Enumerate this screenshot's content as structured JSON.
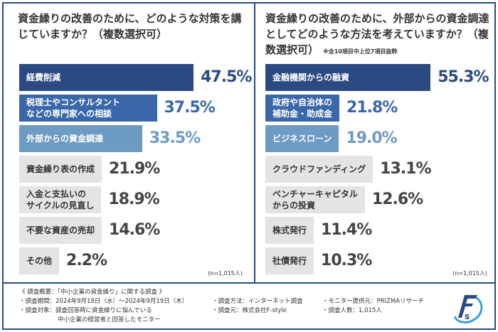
{
  "colors": {
    "top1": "#2c4a82",
    "top2": "#3a67a8",
    "top3": "#6e9bc4",
    "rest": "#e4e4e4",
    "frame": "#2c4a82"
  },
  "chart_data": [
    {
      "type": "bar",
      "orientation": "horizontal",
      "title": "資金繰りの改善のために、どのような対策を講じていますか？（複数選択可）",
      "categories": [
        "経費削減",
        "税理士やコンサルタントなどの専門家への相談",
        "外部からの資金調達",
        "資金繰り表の作成",
        "入金と支払いのサイクルの見直し",
        "不要な資産の売却",
        "その他"
      ],
      "labels": [
        [
          "経費削減"
        ],
        [
          "税理士やコンサルタント",
          "などの専門家への相談"
        ],
        [
          "外部からの資金調達"
        ],
        [
          "資金繰り表の作成"
        ],
        [
          "入金と支払いの",
          "サイクルの見直し"
        ],
        [
          "不要な資産の売却"
        ],
        [
          "その他"
        ]
      ],
      "values": [
        47.5,
        37.5,
        33.5,
        21.9,
        18.9,
        14.6,
        2.2
      ],
      "value_labels": [
        "47.5%",
        "37.5%",
        "33.5%",
        "21.9%",
        "18.9%",
        "14.6%",
        "2.2%"
      ],
      "unit": "%",
      "n_note": "(n=1,015人)"
    },
    {
      "type": "bar",
      "orientation": "horizontal",
      "title": "資金繰りの改善のために、外部からの資金調達としてどのような方法を考えていますか？（複数選択可）",
      "note": "※全10項目中上位7項目抜粋",
      "categories": [
        "金融機関からの融資",
        "政府や自治体の補助金・助成金",
        "ビジネスローン",
        "クラウドファンディング",
        "ベンチャーキャピタルからの投資",
        "株式発行",
        "社債発行"
      ],
      "labels": [
        [
          "金融機関からの融資"
        ],
        [
          "政府や自治体の",
          "補助金・助成金"
        ],
        [
          "ビジネスローン"
        ],
        [
          "クラウドファンディング"
        ],
        [
          "ベンチャーキャピタル",
          "からの投資"
        ],
        [
          "株式発行"
        ],
        [
          "社債発行"
        ]
      ],
      "values": [
        55.3,
        21.8,
        19.0,
        13.1,
        12.6,
        11.4,
        10.3
      ],
      "value_labels": [
        "55.3%",
        "21.8%",
        "19.0%",
        "13.1%",
        "12.6%",
        "11.4%",
        "10.3%"
      ],
      "unit": "%",
      "n_note": "(n=1,015人)"
    }
  ],
  "footer": {
    "heading": "《 調査概要：「中小企業の資金繰り」に関する調査 》",
    "period": "・調査期間：2024年9月18日（水）～2024年9月19日（木）",
    "method": "・調査方法：インターネット調査",
    "provider": "・モニター提供元：PRIZMAリサーチ",
    "target": "・調査対象：調査回答時に資金繰りに悩んでいる",
    "target2": "中小企業の経営者と回答したモニター",
    "source": "・調査元：株式会社F-style",
    "count": "・調査人数：1,015人"
  }
}
